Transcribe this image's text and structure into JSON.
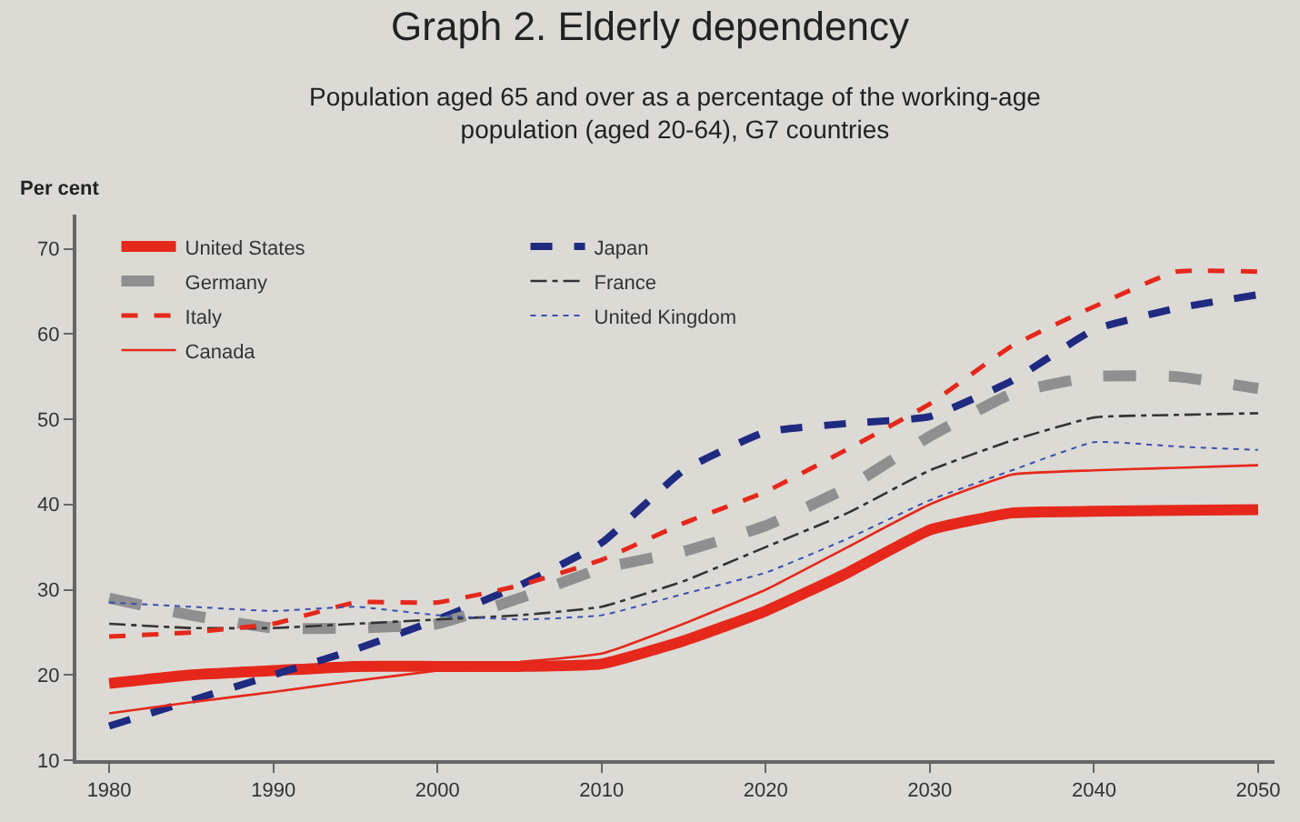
{
  "chart_data": {
    "type": "line",
    "title": "Graph 2. Elderly dependency",
    "subtitle": "Population aged 65 and over as a percentage of the working-age\npopulation (aged 20-64), G7 countries",
    "ylabel": "Per cent",
    "x": [
      1980,
      1985,
      1990,
      1995,
      2000,
      2005,
      2010,
      2015,
      2020,
      2025,
      2030,
      2035,
      2040,
      2045,
      2050
    ],
    "xlim": [
      1978,
      2051
    ],
    "xticks": [
      1980,
      1990,
      2000,
      2010,
      2020,
      2030,
      2040,
      2050
    ],
    "ylim": [
      10,
      74
    ],
    "yticks": [
      10,
      20,
      30,
      40,
      50,
      60,
      70
    ],
    "grid": false,
    "legend": "top left",
    "series": [
      {
        "name": "United States",
        "color": "#e5281b",
        "line_style": "solid",
        "values": [
          19,
          20,
          20.5,
          21,
          21,
          21,
          21.3,
          24,
          27.5,
          32,
          37,
          39,
          39.2,
          39.3,
          39.4
        ]
      },
      {
        "name": "Japan",
        "color": "#1f2a80",
        "line_style": "dashed",
        "values": [
          14,
          17,
          20,
          23,
          26.5,
          30.5,
          35.5,
          44,
          48.5,
          49.5,
          50.3,
          54.5,
          60.5,
          63,
          64.6
        ]
      },
      {
        "name": "Germany",
        "color": "#8f8f8f",
        "line_style": "dashed",
        "values": [
          29,
          27,
          25.5,
          25.5,
          26,
          29,
          32.5,
          34.5,
          37.5,
          42,
          48,
          53,
          55,
          55,
          53.6
        ]
      },
      {
        "name": "France",
        "color": "#333333",
        "line_style": "dashdot",
        "values": [
          26,
          25.5,
          25.5,
          26,
          26.5,
          27,
          28,
          31,
          35,
          39,
          44,
          47.5,
          50.2,
          50.5,
          50.7
        ]
      },
      {
        "name": "Italy",
        "color": "#e5281b",
        "line_style": "dashed",
        "values": [
          24.5,
          25,
          26,
          28.5,
          28.5,
          30.5,
          33.5,
          37.8,
          41.5,
          46.5,
          51.8,
          58.6,
          63.2,
          67.3,
          67.3
        ]
      },
      {
        "name": "United Kingdom",
        "color": "#3b4fb0",
        "line_style": "dotted",
        "values": [
          28.5,
          28,
          27.5,
          28,
          27,
          26.5,
          27,
          29.5,
          32,
          36,
          40.5,
          44,
          47.3,
          46.8,
          46.4
        ]
      },
      {
        "name": "Canada",
        "color": "#e5281b",
        "line_style": "solid",
        "values": [
          15.5,
          16.8,
          18,
          19.3,
          20.5,
          21.5,
          22.5,
          26,
          30,
          35,
          40,
          43.5,
          44,
          44.3,
          44.6
        ]
      }
    ]
  }
}
